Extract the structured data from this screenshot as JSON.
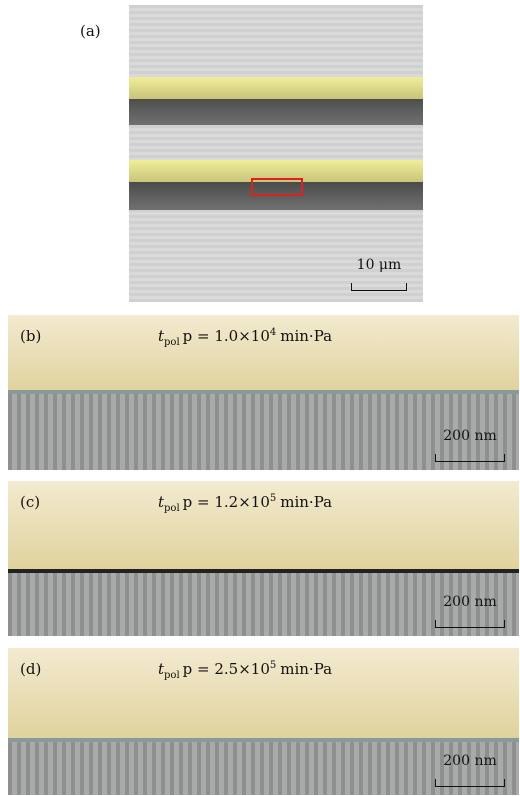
{
  "panels": [
    {
      "label": "(a)",
      "scale_bar": "10 μm"
    },
    {
      "label": "(b)",
      "formula": {
        "var": "t",
        "sub": "pol",
        "mid": "p = 1.0×10",
        "exp": "4",
        "unit": "min·Pa"
      },
      "scale_bar": "200 nm"
    },
    {
      "label": "(c)",
      "formula": {
        "var": "t",
        "sub": "pol",
        "mid": "p = 1.2×10",
        "exp": "5",
        "unit": "min·Pa"
      },
      "scale_bar": "200 nm"
    },
    {
      "label": "(d)",
      "formula": {
        "var": "t",
        "sub": "pol",
        "mid": "p = 2.5×10",
        "exp": "5",
        "unit": "min·Pa"
      },
      "scale_bar": "200 nm"
    }
  ]
}
